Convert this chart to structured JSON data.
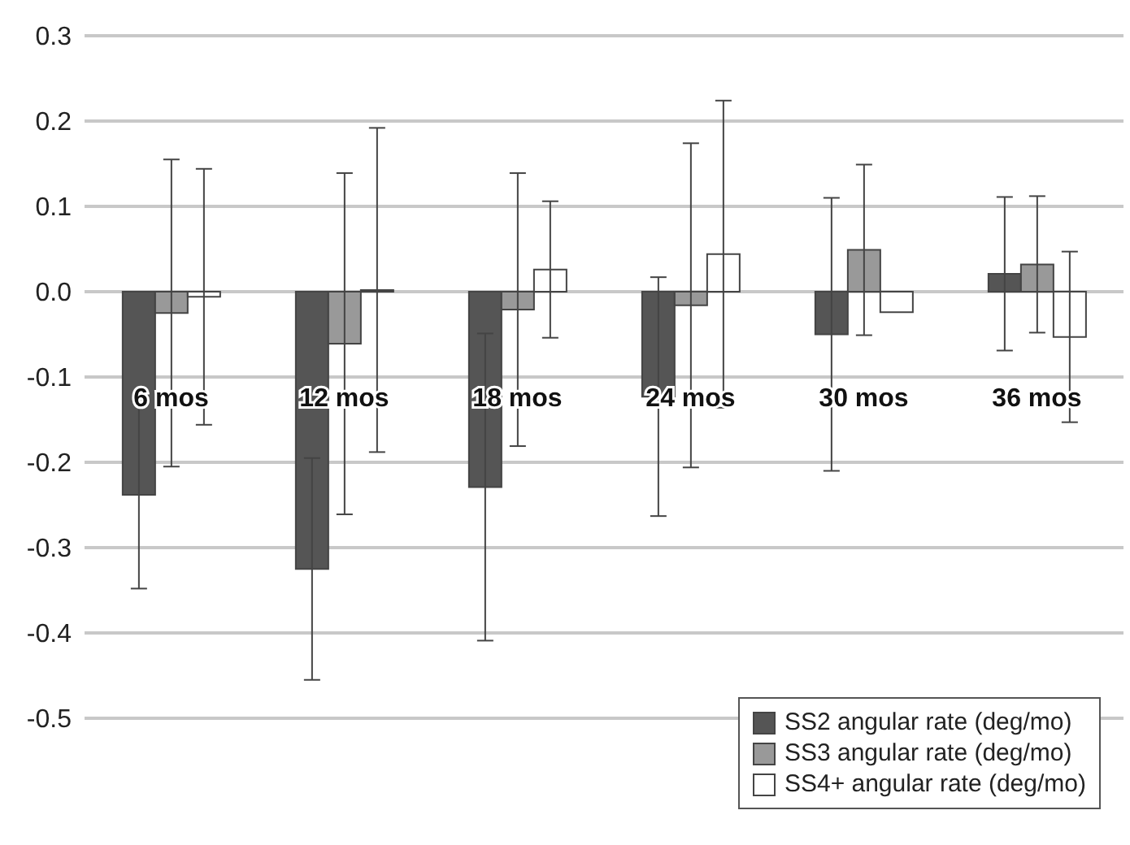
{
  "chart_data": {
    "type": "bar",
    "categories": [
      "6 mos",
      "12 mos",
      "18 mos",
      "24 mos",
      "30 mos",
      "36 mos"
    ],
    "series": [
      {
        "name": "SS2 angular rate (deg/mo)",
        "color": "#555555",
        "values": [
          -0.238,
          -0.325,
          -0.229,
          -0.123,
          -0.05,
          0.021
        ],
        "errors": [
          0.11,
          0.13,
          0.18,
          0.14,
          0.16,
          0.09
        ]
      },
      {
        "name": "SS3 angular rate (deg/mo)",
        "color": "#999999",
        "values": [
          -0.025,
          -0.061,
          -0.021,
          -0.016,
          0.049,
          0.032
        ],
        "errors": [
          0.18,
          0.2,
          0.16,
          0.19,
          0.1,
          0.08
        ]
      },
      {
        "name": "SS4+ angular rate (deg/mo)",
        "color": "#ffffff",
        "values": [
          -0.006,
          0.002,
          0.026,
          0.044,
          -0.024,
          -0.053
        ],
        "errors": [
          0.15,
          0.19,
          0.08,
          0.18,
          null,
          0.1
        ]
      }
    ],
    "ylim": [
      -0.5,
      0.3
    ],
    "yticks": [
      -0.5,
      -0.4,
      -0.3,
      -0.2,
      -0.1,
      {
        "value": 0,
        "label": "0.0"
      },
      0.1,
      0.2,
      0.3
    ],
    "grid": "y",
    "legend": "bottom right"
  }
}
